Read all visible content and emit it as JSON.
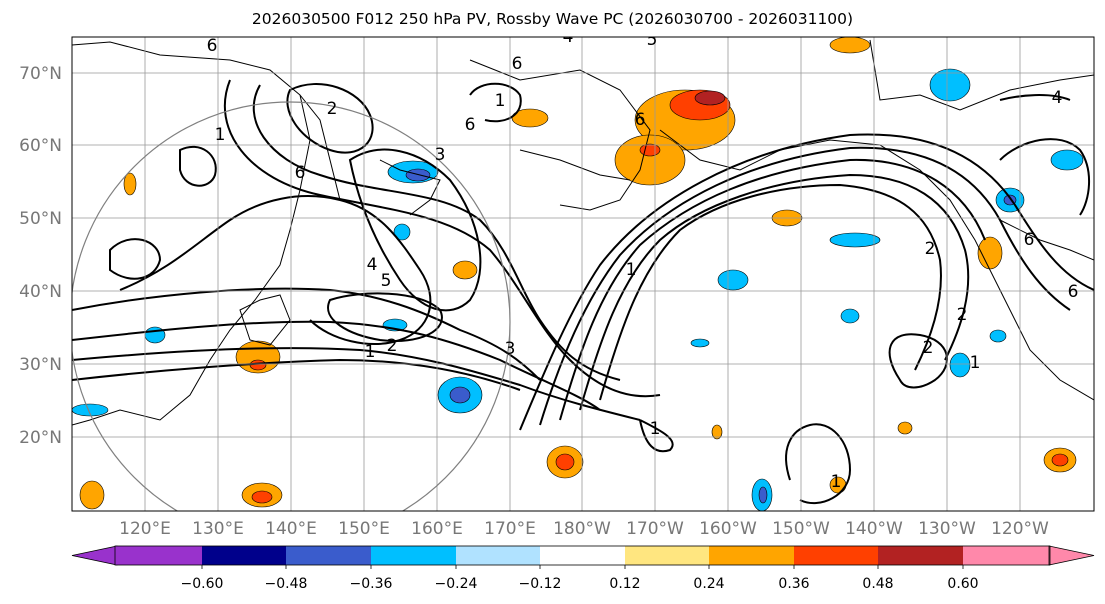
{
  "title": "2026030500 F012 250 hPa PV, Rossby Wave PC (2026030700 - 2026031100)",
  "map": {
    "lat_ticks": [
      "70°N",
      "60°N",
      "50°N",
      "40°N",
      "30°N",
      "20°N"
    ],
    "lon_ticks": [
      "120°E",
      "130°E",
      "140°E",
      "150°E",
      "160°E",
      "170°E",
      "180°W",
      "170°W",
      "160°W",
      "150°W",
      "140°W",
      "130°W",
      "120°W"
    ],
    "contour_labels": [
      "4",
      "5",
      "6",
      "6",
      "2",
      "1",
      "1",
      "6",
      "3",
      "6",
      "5",
      "4",
      "6",
      "1",
      "2",
      "3",
      "1",
      "1",
      "2",
      "2",
      "1",
      "2",
      "4",
      "6",
      "1",
      "6"
    ],
    "colors": {
      "line": "#000000",
      "grid": "#999999",
      "circle": "#808080",
      "blue_fill": "#00bfff",
      "blue_mid": "#3a5ccc",
      "orange_fill": "#ffa500",
      "red_fill": "#ff4000",
      "dark_red": "#b22222",
      "yellow": "#ffe680"
    }
  },
  "colorbar": {
    "labels": [
      "−0.60",
      "−0.48",
      "−0.36",
      "−0.24",
      "−0.12",
      "0.12",
      "0.24",
      "0.36",
      "0.48",
      "0.60"
    ],
    "colors": [
      "#9932cc",
      "#00008b",
      "#3a5ccc",
      "#00bfff",
      "#b0e2ff",
      "#ffffff",
      "#ffe680",
      "#ffa500",
      "#ff4000",
      "#b22222",
      "#ff88aa"
    ]
  }
}
